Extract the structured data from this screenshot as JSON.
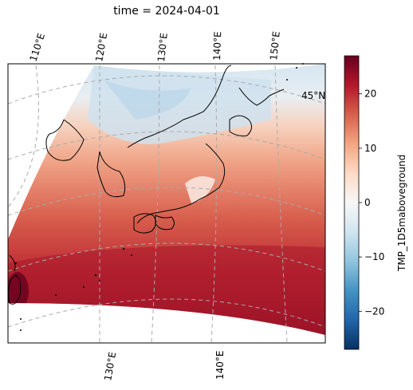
{
  "title": "time = 2024-04-01",
  "map": {
    "type": "heatmap",
    "projection": "lambert-conformal",
    "region": "Japan / East Asia",
    "variable": "TMP_1D5maboveground",
    "top_lon_labels": [
      "110°E",
      "120°E",
      "130°E",
      "140°E",
      "150°E"
    ],
    "bottom_lon_labels": [
      "130°E",
      "140°E"
    ],
    "lat_labels": [
      "45°N"
    ],
    "gridlines": true,
    "coastlines": true
  },
  "colorbar": {
    "label": "TMP_1D5maboveground",
    "colormap": "RdBu_r",
    "range": [
      -27,
      27
    ],
    "ticks": [
      "20",
      "10",
      "0",
      "−10",
      "−20"
    ],
    "colors": [
      "#053061",
      "#2166ac",
      "#4393c3",
      "#92c5de",
      "#d1e5f0",
      "#f7f7f7",
      "#fddbc7",
      "#f4a582",
      "#d6604d",
      "#b2182b",
      "#67001f"
    ]
  }
}
